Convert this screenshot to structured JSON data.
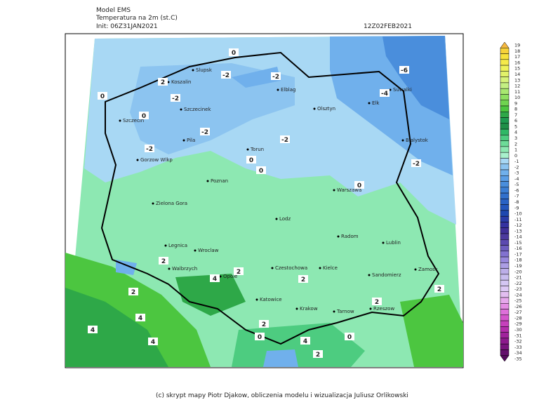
{
  "header": {
    "model": "Model EMS",
    "variable": "Temperatura na 2m (st.C)",
    "init": "Init: 06Z31JAN2021",
    "valid": "12Z02FEB2021"
  },
  "legend": {
    "levels": [
      19,
      18,
      17,
      16,
      15,
      14,
      13,
      12,
      11,
      10,
      9,
      8,
      7,
      6,
      5,
      4,
      3,
      2,
      1,
      0,
      -1,
      -2,
      -3,
      -4,
      -5,
      -6,
      -7,
      -8,
      -9,
      -10,
      -11,
      -12,
      -13,
      -14,
      -15,
      -16,
      -17,
      -18,
      -19,
      -20,
      -21,
      -22,
      -23,
      -24,
      -25,
      -26,
      -27,
      -28,
      -29,
      -30,
      -31,
      -32,
      -33,
      -34,
      -35
    ],
    "colors": [
      "#f5b841",
      "#f7d23a",
      "#f8e23c",
      "#f5ea4a",
      "#eef25a",
      "#e2f26a",
      "#d6f27a",
      "#c4ef82",
      "#a8e870",
      "#8ee060",
      "#6fd450",
      "#4cc640",
      "#2ea848",
      "#1e9a50",
      "#1f8f48",
      "#2fb866",
      "#4dcc80",
      "#6ddc98",
      "#8de8b2",
      "#a8f0cc",
      "#a8d8f4",
      "#8cc4f0",
      "#70b0ec",
      "#5a9ee6",
      "#4a8edc",
      "#3c7ed4",
      "#3270cc",
      "#2a62c4",
      "#2456bc",
      "#1e48b0",
      "#2a3ca8",
      "#3432a0",
      "#403098",
      "#4c3a9e",
      "#5c4ab0",
      "#6e5ec0",
      "#8272d0",
      "#9888dc",
      "#ac9ee4",
      "#bcaee8",
      "#c8bcee",
      "#d4c6f2",
      "#dcc8f4",
      "#e2bef0",
      "#e6a8ec",
      "#e48ee4",
      "#de70da",
      "#d456cc",
      "#c640bc",
      "#b42eac",
      "#a0229c",
      "#8c1a8c",
      "#78147c",
      "#64106c",
      "#540c5c"
    ]
  },
  "cities": [
    "Slupsk",
    "Koszalin",
    "Elblag",
    "Olsztyn",
    "Elk",
    "Suwalki",
    "Szczecinek",
    "Szczecin",
    "Pila",
    "Torun",
    "Bialystok",
    "Gorzow Wlkp",
    "Poznan",
    "Warszawa",
    "Zielona Gora",
    "Lodz",
    "Radom",
    "Lublin",
    "Legnica",
    "Wroclaw",
    "Walbrzych",
    "Czestochowa",
    "Kielce",
    "Sandomierz",
    "Zamosc",
    "Opole",
    "Katowice",
    "Krakow",
    "Tarnow",
    "Rzeszow"
  ],
  "contour_labels": [
    "0",
    "-2",
    "-2",
    "-6",
    "-4",
    "2",
    "-2",
    "0",
    "0",
    "-2",
    "-2",
    "-2",
    "0",
    "0",
    "-2",
    "0",
    "2",
    "2",
    "4",
    "2",
    "2",
    "4",
    "4",
    "4",
    "2",
    "0",
    "4",
    "0",
    "2",
    "2",
    "2"
  ],
  "footer": "(c) skrypt mapy Piotr Djakow, obliczenia modelu i wizualizacja Juliusz Orlikowski"
}
